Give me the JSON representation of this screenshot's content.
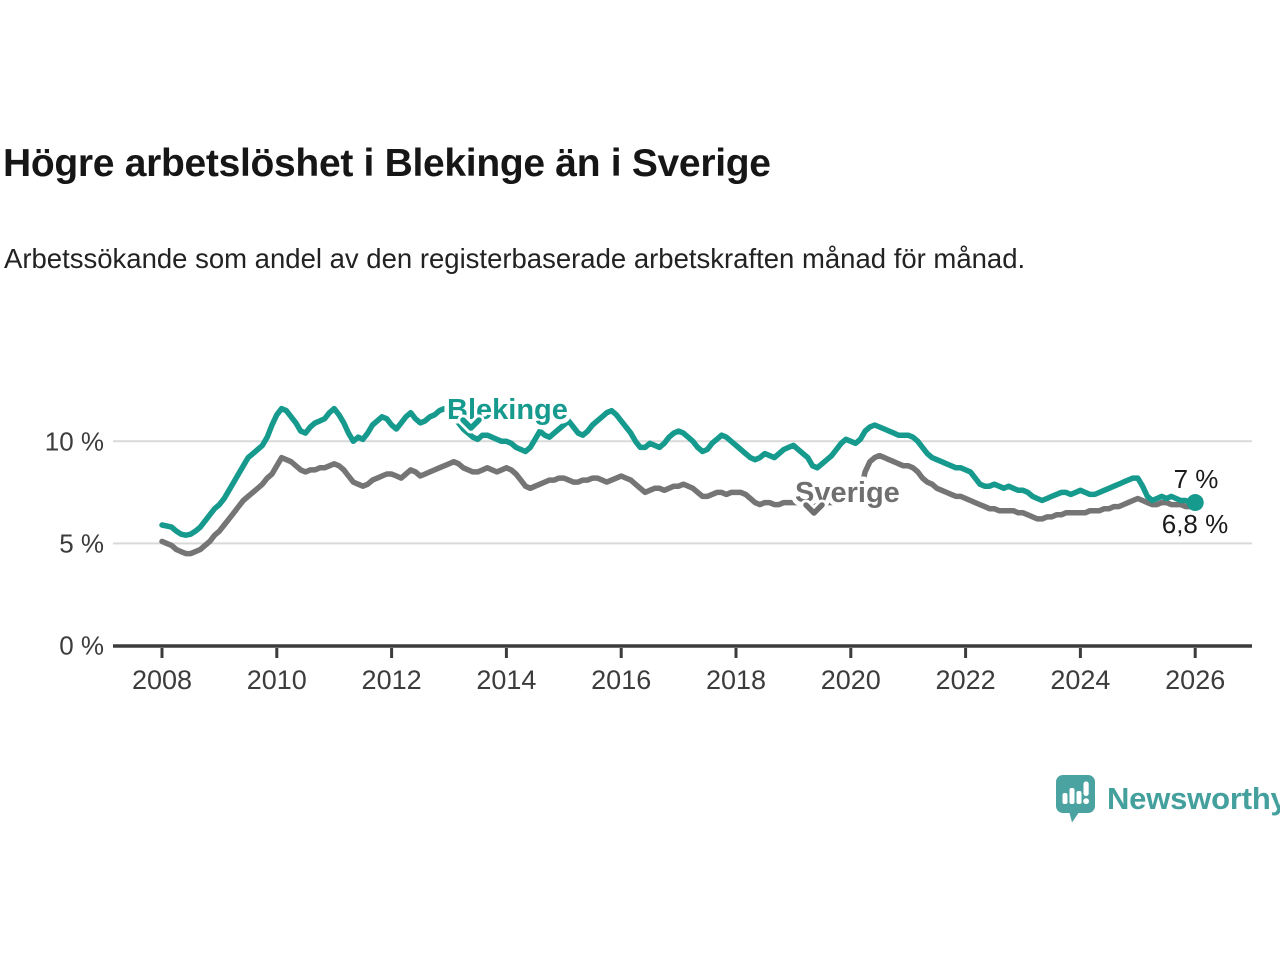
{
  "header": {
    "title": "Högre arbetslöshet i Blekinge än i Sverige",
    "subtitle": "Arbetssökande som andel av den registerbaserade arbetskraften månad för månad."
  },
  "logo": {
    "text": "Newsworthy",
    "brand_color": "#43a09d"
  },
  "chart_data": {
    "type": "line",
    "unit": "%",
    "title": "Högre arbetslöshet i Blekinge än i Sverige",
    "subtitle": "Arbetssökande som andel av den registerbaserade arbetskraften månad för månad.",
    "x_range": {
      "start": "2008-01",
      "end": "2026-01",
      "frequency": "monthly"
    },
    "x_axis": {
      "ticks": [
        2008,
        2010,
        2012,
        2014,
        2016,
        2018,
        2020,
        2022,
        2024,
        2026
      ],
      "tick_labels": [
        "2008",
        "2010",
        "2012",
        "2014",
        "2016",
        "2018",
        "2020",
        "2022",
        "2024",
        "2026"
      ]
    },
    "y_axis": {
      "ticks": [
        0,
        5,
        10
      ],
      "tick_labels": [
        "0 %",
        "5 %",
        "10 %"
      ],
      "range": [
        0,
        12.5
      ],
      "grid": true
    },
    "colors": {
      "blekinge": "#169a8d",
      "sverige": "#757575",
      "grid": "#d9d9d9",
      "axis": "#3c3c3c"
    },
    "legend_position": "inline-labels",
    "series": [
      {
        "name": "Sverige",
        "color": "#757575",
        "latest_label": "6,8 %",
        "latest_value": 6.8,
        "values": [
          5.1,
          5.0,
          4.9,
          4.7,
          4.6,
          4.5,
          4.5,
          4.6,
          4.7,
          4.9,
          5.1,
          5.4,
          5.6,
          5.9,
          6.2,
          6.5,
          6.8,
          7.1,
          7.3,
          7.5,
          7.7,
          7.9,
          8.2,
          8.4,
          8.8,
          9.2,
          9.1,
          9.0,
          8.8,
          8.6,
          8.5,
          8.6,
          8.6,
          8.7,
          8.7,
          8.8,
          8.9,
          8.8,
          8.6,
          8.3,
          8.0,
          7.9,
          7.8,
          7.9,
          8.1,
          8.2,
          8.3,
          8.4,
          8.4,
          8.3,
          8.2,
          8.4,
          8.6,
          8.5,
          8.3,
          8.4,
          8.5,
          8.6,
          8.7,
          8.8,
          8.9,
          9.0,
          8.9,
          8.7,
          8.6,
          8.5,
          8.5,
          8.6,
          8.7,
          8.6,
          8.5,
          8.6,
          8.7,
          8.6,
          8.4,
          8.1,
          7.8,
          7.7,
          7.8,
          7.9,
          8.0,
          8.1,
          8.1,
          8.2,
          8.2,
          8.1,
          8.0,
          8.0,
          8.1,
          8.1,
          8.2,
          8.2,
          8.1,
          8.0,
          8.1,
          8.2,
          8.3,
          8.2,
          8.1,
          7.9,
          7.7,
          7.5,
          7.6,
          7.7,
          7.7,
          7.6,
          7.7,
          7.8,
          7.8,
          7.9,
          7.8,
          7.7,
          7.5,
          7.3,
          7.3,
          7.4,
          7.5,
          7.5,
          7.4,
          7.5,
          7.5,
          7.5,
          7.4,
          7.2,
          7.0,
          6.9,
          7.0,
          7.0,
          6.9,
          6.9,
          7.0,
          7.0,
          7.0,
          7.0,
          6.9,
          6.9,
          6.8,
          6.9,
          7.0,
          7.0,
          7.0,
          7.0,
          7.1,
          7.1,
          7.2,
          7.2,
          7.5,
          8.5,
          9.0,
          9.2,
          9.3,
          9.2,
          9.1,
          9.0,
          8.9,
          8.8,
          8.8,
          8.7,
          8.5,
          8.2,
          8.0,
          7.9,
          7.7,
          7.6,
          7.5,
          7.4,
          7.3,
          7.3,
          7.2,
          7.1,
          7.0,
          6.9,
          6.8,
          6.7,
          6.7,
          6.6,
          6.6,
          6.6,
          6.6,
          6.5,
          6.5,
          6.4,
          6.3,
          6.2,
          6.2,
          6.3,
          6.3,
          6.4,
          6.4,
          6.5,
          6.5,
          6.5,
          6.5,
          6.5,
          6.6,
          6.6,
          6.6,
          6.7,
          6.7,
          6.8,
          6.8,
          6.9,
          7.0,
          7.1,
          7.2,
          7.1,
          7.0,
          6.9,
          6.9,
          7.0,
          7.0,
          6.9,
          6.9,
          6.9,
          6.8,
          6.8,
          6.8
        ]
      },
      {
        "name": "Blekinge",
        "color": "#169a8d",
        "latest_label": "7 %",
        "latest_value": 7.0,
        "values": [
          5.9,
          5.85,
          5.8,
          5.6,
          5.45,
          5.4,
          5.45,
          5.6,
          5.8,
          6.1,
          6.4,
          6.7,
          6.9,
          7.2,
          7.6,
          8.0,
          8.4,
          8.8,
          9.2,
          9.4,
          9.6,
          9.8,
          10.2,
          10.8,
          11.3,
          11.6,
          11.5,
          11.2,
          10.9,
          10.5,
          10.4,
          10.7,
          10.9,
          11.0,
          11.1,
          11.4,
          11.6,
          11.3,
          10.9,
          10.4,
          10.0,
          10.2,
          10.1,
          10.4,
          10.8,
          11.0,
          11.2,
          11.1,
          10.8,
          10.6,
          10.9,
          11.2,
          11.4,
          11.1,
          10.9,
          11.0,
          11.2,
          11.3,
          11.5,
          11.6,
          11.5,
          11.2,
          10.9,
          10.6,
          10.4,
          10.2,
          10.1,
          10.3,
          10.3,
          10.2,
          10.1,
          10.0,
          10.0,
          9.9,
          9.7,
          9.6,
          9.5,
          9.7,
          10.1,
          10.5,
          10.3,
          10.2,
          10.4,
          10.6,
          10.8,
          11.0,
          10.7,
          10.4,
          10.3,
          10.5,
          10.8,
          11.0,
          11.2,
          11.4,
          11.5,
          11.3,
          11.0,
          10.7,
          10.4,
          10.0,
          9.7,
          9.7,
          9.9,
          9.8,
          9.7,
          9.9,
          10.2,
          10.4,
          10.5,
          10.4,
          10.2,
          10.0,
          9.7,
          9.5,
          9.6,
          9.9,
          10.1,
          10.3,
          10.2,
          10.0,
          9.8,
          9.6,
          9.4,
          9.2,
          9.1,
          9.2,
          9.4,
          9.3,
          9.2,
          9.4,
          9.6,
          9.7,
          9.8,
          9.6,
          9.4,
          9.2,
          8.8,
          8.7,
          8.9,
          9.1,
          9.3,
          9.6,
          9.9,
          10.1,
          10.0,
          9.9,
          10.1,
          10.5,
          10.7,
          10.8,
          10.7,
          10.6,
          10.5,
          10.4,
          10.3,
          10.3,
          10.3,
          10.2,
          10.0,
          9.7,
          9.4,
          9.2,
          9.1,
          9.0,
          8.9,
          8.8,
          8.7,
          8.7,
          8.6,
          8.5,
          8.2,
          7.9,
          7.8,
          7.8,
          7.9,
          7.8,
          7.7,
          7.8,
          7.7,
          7.6,
          7.6,
          7.5,
          7.3,
          7.2,
          7.1,
          7.2,
          7.3,
          7.4,
          7.5,
          7.5,
          7.4,
          7.5,
          7.6,
          7.5,
          7.4,
          7.4,
          7.5,
          7.6,
          7.7,
          7.8,
          7.9,
          8.0,
          8.1,
          8.2,
          8.2,
          7.8,
          7.3,
          7.1,
          7.2,
          7.3,
          7.2,
          7.3,
          7.2,
          7.1,
          7.1,
          7.0,
          7.0
        ]
      }
    ]
  }
}
